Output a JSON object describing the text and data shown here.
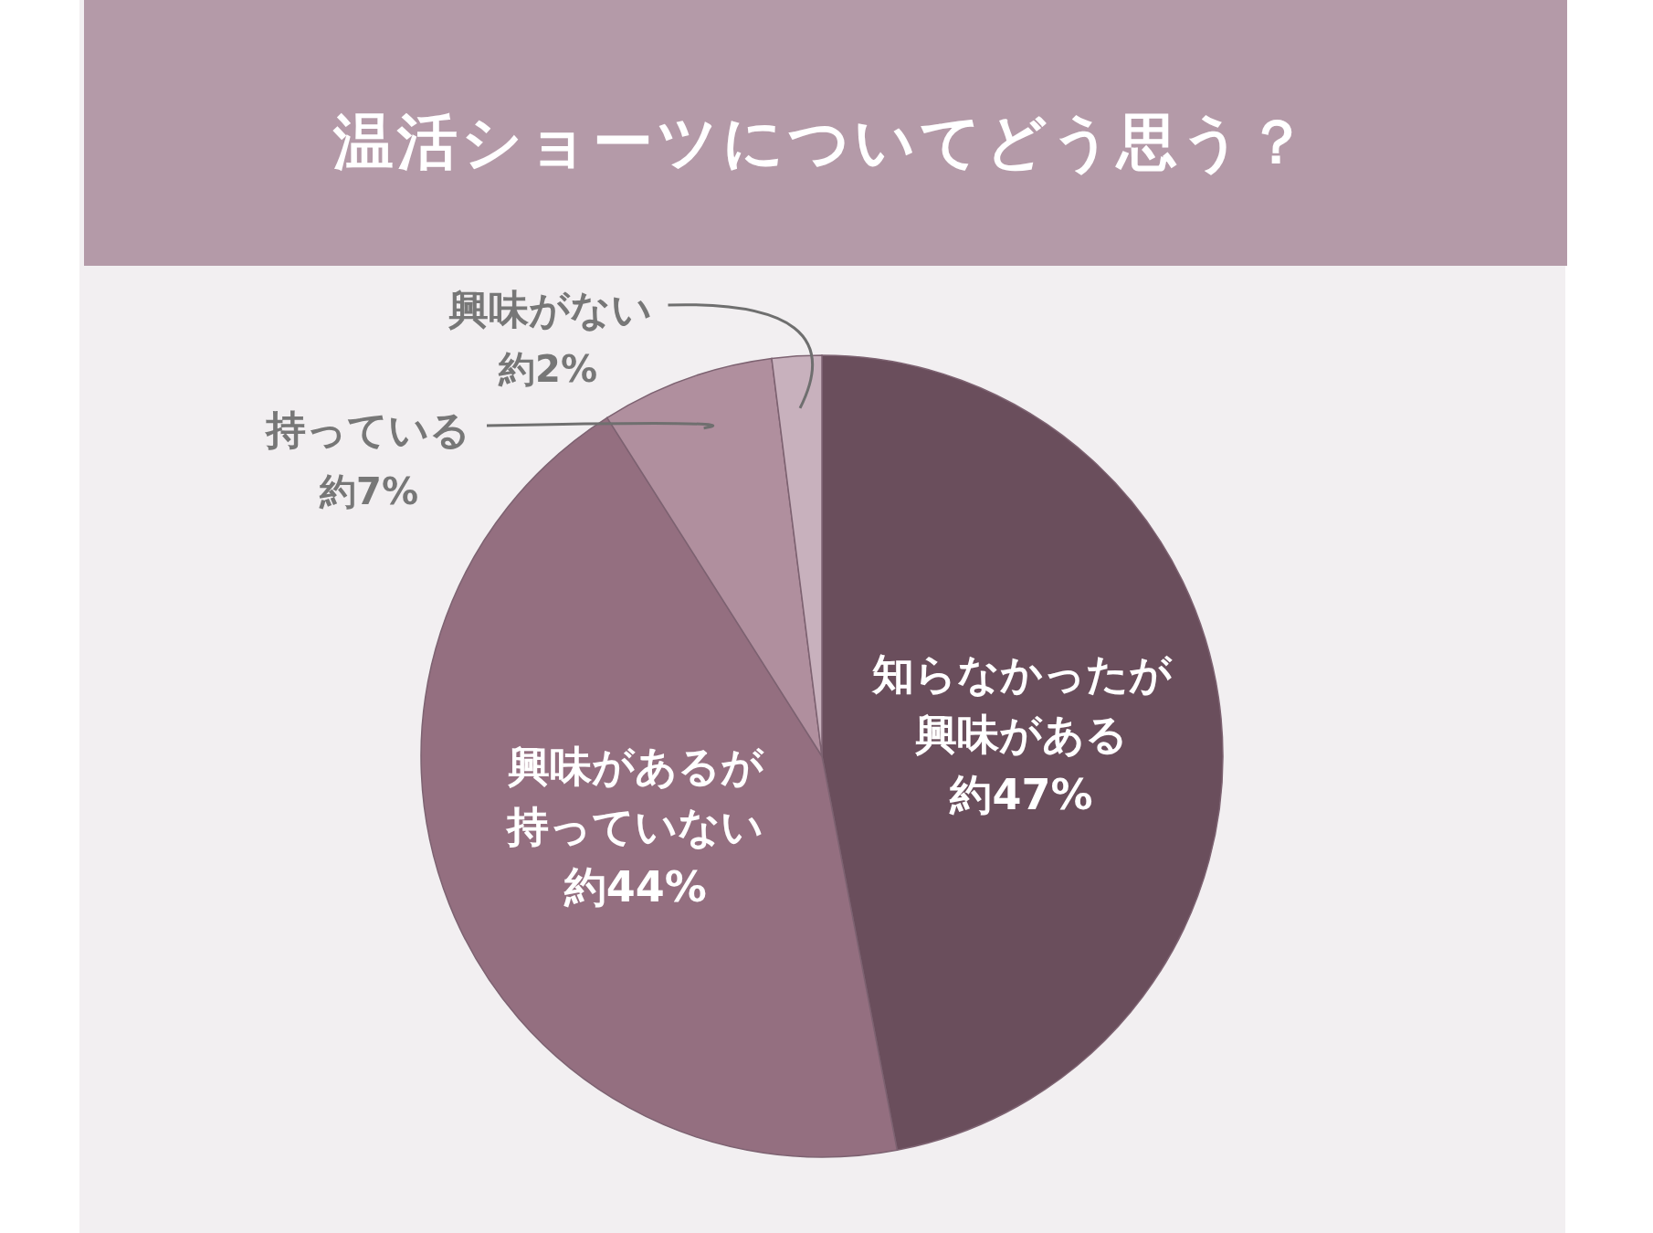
{
  "chart_data": {
    "type": "pie",
    "title": "温活ショーツについてどう思う？",
    "categories": [
      "知らなかったが興味がある",
      "興味があるが持っていない",
      "持っている",
      "興味がない"
    ],
    "values": [
      47,
      44,
      7,
      2
    ],
    "value_labels": [
      "約47%",
      "約44%",
      "約7%",
      "約2%"
    ],
    "colors": [
      "#6a4e5c",
      "#946f80",
      "#b08f9e",
      "#c8b1bd"
    ]
  }
}
